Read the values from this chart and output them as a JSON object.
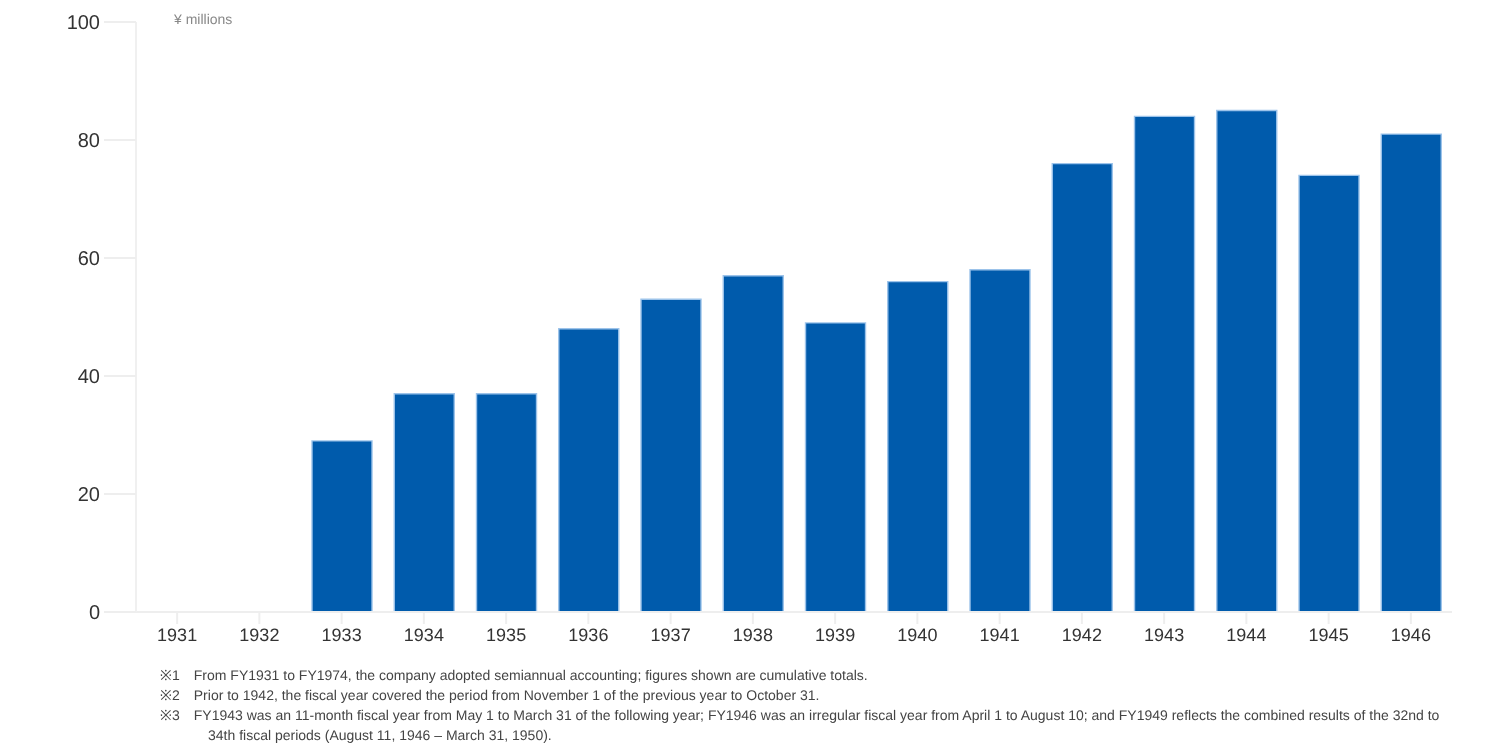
{
  "chart_data": {
    "type": "bar",
    "ylabel": "¥ millions",
    "categories": [
      "1931",
      "1932",
      "1933",
      "1934",
      "1935",
      "1936",
      "1937",
      "1938",
      "1939",
      "1940",
      "1941",
      "1942",
      "1943",
      "1944",
      "1945",
      "1946"
    ],
    "values": [
      null,
      null,
      29,
      37,
      37,
      48,
      53,
      57,
      49,
      56,
      58,
      76,
      84,
      85,
      74,
      81
    ],
    "color": "#005bac",
    "ylim": [
      0,
      100
    ],
    "yticks": [
      0,
      20,
      40,
      60,
      80,
      100
    ],
    "grid": false,
    "legend": false,
    "annotations": [
      "※1　From FY1931 to FY1974, the company adopted semiannual accounting; figures shown are cumulative totals.",
      "※2　Prior to 1942, the fiscal year covered the period from November 1 of the previous year to October 31.",
      "※3　FY1943 was an 11-month fiscal year from May 1 to March 31 of the following year; FY1946 was an irregular fiscal year from April 1 to August 10; and FY1949 reflects the combined results of the 32nd to 34th fiscal periods (August 11, 1946 – March 31, 1950)."
    ]
  }
}
